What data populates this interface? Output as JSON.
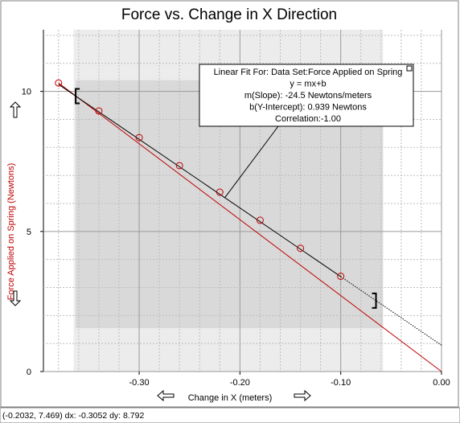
{
  "chart_data": {
    "type": "scatter",
    "title": "Force vs. Change in X Direction",
    "xlabel": "Change in X (meters)",
    "ylabel": "Force Applied on Spring (Newtons)",
    "xlim": [
      -0.395,
      0.0
    ],
    "ylim": [
      0,
      12.2
    ],
    "x_ticks": [
      -0.3,
      -0.2,
      -0.1,
      0.0
    ],
    "x_tick_labels": [
      "-0.30",
      "-0.20",
      "-0.10",
      "0.00"
    ],
    "y_ticks": [
      0,
      5,
      10
    ],
    "y_tick_labels": [
      "0",
      "5",
      "10"
    ],
    "grid": true,
    "series": [
      {
        "name": "Force Applied on Spring",
        "color": "#c00000",
        "x": [
          -0.38,
          -0.34,
          -0.3,
          -0.26,
          -0.22,
          -0.18,
          -0.14,
          -0.1
        ],
        "y": [
          10.3,
          9.3,
          8.35,
          7.35,
          6.4,
          5.4,
          4.4,
          3.4
        ]
      }
    ],
    "through_origin_line": {
      "color": "#c00000",
      "x": [
        -0.38,
        0.0
      ],
      "y": [
        10.3,
        0.0
      ]
    },
    "fit_line": {
      "color": "#000000",
      "slope": -24.5,
      "intercept": 0.939,
      "x_range": [
        -0.38,
        0.0
      ]
    },
    "fit_selection": {
      "x": [
        -0.363,
        -0.058
      ],
      "y": [
        1.55,
        10.4
      ]
    },
    "fit_box": {
      "lines": [
        "Linear Fit For:  Data Set:Force Applied on Spring",
        "y = mx+b",
        "m(Slope): -24.5 Newtons/meters",
        "b(Y-Intercept): 0.939 Newtons",
        "Correlation:-1.00"
      ]
    }
  },
  "status_bar": {
    "text": "(-0.2032, 7.469) dx: -0.3052 dy: 8.792"
  },
  "scroll_icons": {
    "up": "up-arrow-icon",
    "down": "down-arrow-icon",
    "left": "left-arrow-icon",
    "right": "right-arrow-icon"
  }
}
